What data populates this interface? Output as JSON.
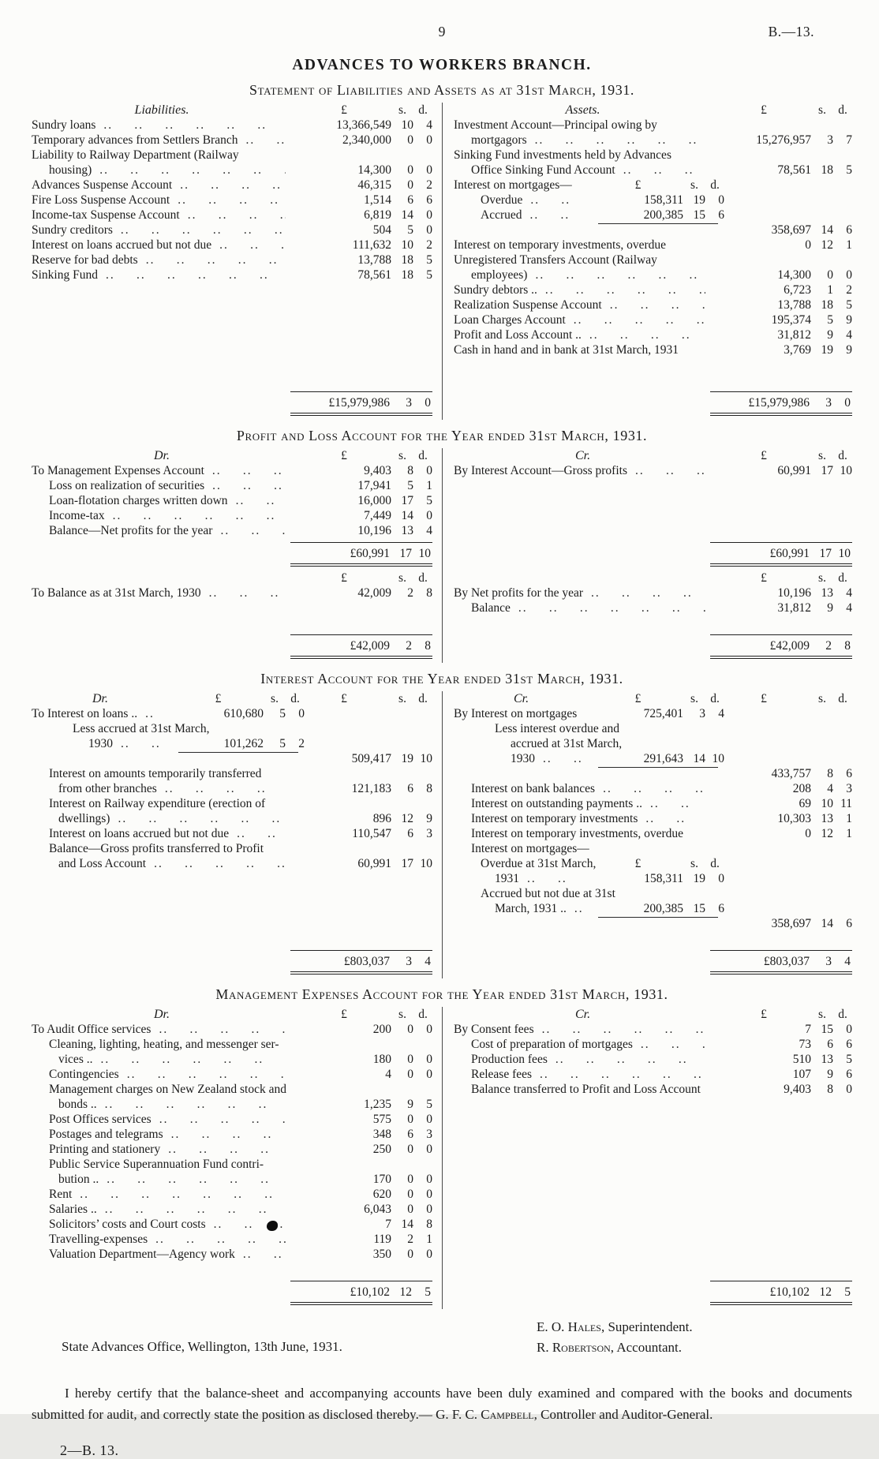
{
  "page": {
    "number": "9",
    "ref": "B.—13.",
    "footer": "2—B. 13."
  },
  "title": "ADVANCES TO WORKERS BRANCH.",
  "sections": [
    {
      "id": "balance-sheet",
      "heading": "Statement of Liabilities and Assets as at 31st March, 1931.",
      "left": {
        "lines": [
          {
            "hdr": "Liabilities.",
            "o": [
              "£",
              "s.",
              "d."
            ]
          },
          {
            "t": "Sundry loans",
            "dots": true,
            "o": [
              "13,366,549",
              "10",
              "4"
            ]
          },
          {
            "t": "Temporary advances from Settlers Branch",
            "dots": true,
            "o": [
              "2,340,000",
              "0",
              "0"
            ]
          },
          {
            "t": "Liability to Railway Department (Railway"
          },
          {
            "t": "housing)",
            "ind": 1,
            "dots": true,
            "o": [
              "14,300",
              "0",
              "0"
            ]
          },
          {
            "t": "Advances Suspense Account",
            "dots": true,
            "o": [
              "46,315",
              "0",
              "2"
            ]
          },
          {
            "t": "Fire Loss Suspense Account",
            "dots": true,
            "o": [
              "1,514",
              "6",
              "6"
            ]
          },
          {
            "t": "Income-tax Suspense Account",
            "dots": true,
            "o": [
              "6,819",
              "14",
              "0"
            ]
          },
          {
            "t": "Sundry creditors",
            "dots": true,
            "o": [
              "504",
              "5",
              "0"
            ]
          },
          {
            "t": "Interest on loans accrued but not due",
            "dots": true,
            "o": [
              "111,632",
              "10",
              "2"
            ]
          },
          {
            "t": "Reserve for bad debts",
            "dots": true,
            "o": [
              "13,788",
              "18",
              "5"
            ]
          },
          {
            "t": "Sinking Fund",
            "dots": true,
            "o": [
              "78,561",
              "18",
              "5"
            ]
          },
          {
            "sp": 7
          },
          {
            "total": [
              "£15,979,986",
              "3",
              "0"
            ]
          }
        ]
      },
      "right": {
        "lines": [
          {
            "hdr": "Assets.",
            "o": [
              "£",
              "s.",
              "d."
            ]
          },
          {
            "t": "Investment Account—Principal owing by"
          },
          {
            "t": "mortgagors",
            "ind": 1,
            "dots": true,
            "o": [
              "15,276,957",
              "3",
              "7"
            ]
          },
          {
            "t": "Sinking Fund investments held by Advances"
          },
          {
            "t": "Office Sinking Fund Account",
            "ind": 1,
            "dots": true,
            "o": [
              "78,561",
              "18",
              "5"
            ]
          },
          {
            "t": "Interest on mortgages—",
            "i": [
              "£",
              "s.",
              "d."
            ],
            "mh": true
          },
          {
            "t": "Overdue",
            "ind": 2,
            "dots": true,
            "i": [
              "158,311",
              "19",
              "0"
            ]
          },
          {
            "t": "Accrued",
            "ind": 2,
            "dots": true,
            "i": [
              "200,385",
              "15",
              "6"
            ]
          },
          {
            "rule": true,
            "o": [
              "358,697",
              "14",
              "6"
            ]
          },
          {
            "t": "Interest on temporary investments, overdue",
            "o": [
              "0",
              "12",
              "1"
            ]
          },
          {
            "t": "Unregistered Transfers Account (Railway"
          },
          {
            "t": "employees)",
            "ind": 1,
            "dots": true,
            "o": [
              "14,300",
              "0",
              "0"
            ]
          },
          {
            "t": "Sundry debtors ..",
            "dots": true,
            "o": [
              "6,723",
              "1",
              "2"
            ]
          },
          {
            "t": "Realization Suspense Account",
            "dots": true,
            "o": [
              "13,788",
              "18",
              "5"
            ]
          },
          {
            "t": "Loan Charges Account",
            "dots": true,
            "o": [
              "195,374",
              "5",
              "9"
            ]
          },
          {
            "t": "Profit and Loss Account ..",
            "dots": true,
            "o": [
              "31,812",
              "9",
              "4"
            ]
          },
          {
            "t": "Cash in hand and in bank at 31st March, 1931",
            "o": [
              "3,769",
              "19",
              "9"
            ]
          },
          {
            "sp": 2
          },
          {
            "total": [
              "£15,979,986",
              "3",
              "0"
            ]
          }
        ]
      }
    },
    {
      "id": "profit-and-loss",
      "heading": "Profit and Loss Account for the Year ended 31st March, 1931.",
      "left": {
        "lines": [
          {
            "hdr": "Dr.",
            "o": [
              "£",
              "s.",
              "d."
            ]
          },
          {
            "t": "To Management Expenses Account",
            "dots": true,
            "o": [
              "9,403",
              "8",
              "0"
            ]
          },
          {
            "t": "Loss on realization of securities",
            "ind": 1,
            "dots": true,
            "o": [
              "17,941",
              "5",
              "1"
            ]
          },
          {
            "t": "Loan-flotation charges written down",
            "ind": 1,
            "dots": true,
            "o": [
              "16,000",
              "17",
              "5"
            ]
          },
          {
            "t": "Income-tax",
            "ind": 1,
            "dots": true,
            "o": [
              "7,449",
              "14",
              "0"
            ]
          },
          {
            "t": "Balance—Net profits for the year",
            "ind": 1,
            "dots": true,
            "o": [
              "10,196",
              "13",
              "4"
            ]
          },
          {
            "total": [
              "£60,991",
              "17",
              "10"
            ]
          },
          {
            "mh2": true,
            "o": [
              "£",
              "s.",
              "d."
            ]
          },
          {
            "t": "To Balance as at 31st March, 1930",
            "dots": true,
            "o": [
              "42,009",
              "2",
              "8"
            ]
          },
          {
            "sp": 2
          },
          {
            "total": [
              "£42,009",
              "2",
              "8"
            ]
          }
        ]
      },
      "right": {
        "lines": [
          {
            "hdr": "Cr.",
            "o": [
              "£",
              "s.",
              "d."
            ]
          },
          {
            "t": "By Interest Account—Gross profits",
            "dots": true,
            "o": [
              "60,991",
              "17",
              "10"
            ]
          },
          {
            "sp": 4
          },
          {
            "total": [
              "£60,991",
              "17",
              "10"
            ]
          },
          {
            "mh2": true,
            "o": [
              "£",
              "s.",
              "d."
            ]
          },
          {
            "t": "By Net profits for the year",
            "dots": true,
            "o": [
              "10,196",
              "13",
              "4"
            ]
          },
          {
            "t": "Balance",
            "ind": 1,
            "dots": true,
            "o": [
              "31,812",
              "9",
              "4"
            ]
          },
          {
            "sp": 1
          },
          {
            "total": [
              "£42,009",
              "2",
              "8"
            ]
          }
        ]
      }
    },
    {
      "id": "interest-account",
      "heading": "Interest Account for the Year ended 31st March, 1931.",
      "left": {
        "lines": [
          {
            "hdr": "Dr.",
            "i": [
              "£",
              "s.",
              "d."
            ],
            "o": [
              "£",
              "s.",
              "d."
            ]
          },
          {
            "t": "To Interest on loans ..",
            "dots": true,
            "i": [
              "610,680",
              "5",
              "0"
            ]
          },
          {
            "t": "Less accrued at 31st March,",
            "ind": 3
          },
          {
            "t": "1930",
            "ind": 4,
            "dots": true,
            "i": [
              "101,262",
              "5",
              "2"
            ]
          },
          {
            "rule": true,
            "o": [
              "509,417",
              "19",
              "10"
            ]
          },
          {
            "t": "Interest on amounts temporarily transferred",
            "ind": 1
          },
          {
            "t": "from other branches",
            "ind": 2,
            "dots": true,
            "o": [
              "121,183",
              "6",
              "8"
            ]
          },
          {
            "t": "Interest on Railway expenditure (erection of",
            "ind": 1
          },
          {
            "t": "dwellings)",
            "ind": 2,
            "dots": true,
            "o": [
              "896",
              "12",
              "9"
            ]
          },
          {
            "t": "Interest on loans accrued but not due",
            "ind": 1,
            "dots": true,
            "o": [
              "110,547",
              "6",
              "3"
            ]
          },
          {
            "t": "Balance—Gross profits transferred to Profit",
            "ind": 1
          },
          {
            "t": "and Loss Account",
            "ind": 2,
            "dots": true,
            "o": [
              "60,991",
              "17",
              "10"
            ]
          },
          {
            "sp": 5
          },
          {
            "total": [
              "£803,037",
              "3",
              "4"
            ]
          }
        ]
      },
      "right": {
        "lines": [
          {
            "hdr": "Cr.",
            "i": [
              "£",
              "s.",
              "d."
            ],
            "o": [
              "£",
              "s.",
              "d."
            ]
          },
          {
            "t": "By Interest on mortgages",
            "dots": true,
            "i": [
              "725,401",
              "3",
              "4"
            ]
          },
          {
            "t": "Less interest overdue and",
            "ind": 3
          },
          {
            "t": "accrued at 31st March,",
            "ind": 4
          },
          {
            "t": "1930",
            "ind": 4,
            "dots": true,
            "i": [
              "291,643",
              "14",
              "10"
            ]
          },
          {
            "rule": true,
            "o": [
              "433,757",
              "8",
              "6"
            ]
          },
          {
            "t": "Interest on bank balances",
            "ind": 1,
            "dots": true,
            "o": [
              "208",
              "4",
              "3"
            ]
          },
          {
            "t": "Interest on outstanding payments ..",
            "ind": 1,
            "dots": true,
            "o": [
              "69",
              "10",
              "11"
            ]
          },
          {
            "t": "Interest on temporary investments",
            "ind": 1,
            "dots": true,
            "o": [
              "10,303",
              "13",
              "1"
            ]
          },
          {
            "t": "Interest on temporary investments, overdue",
            "ind": 1,
            "o": [
              "0",
              "12",
              "1"
            ]
          },
          {
            "t": "Interest on mortgages—",
            "ind": 1
          },
          {
            "t": "Overdue at 31st March,",
            "ind": 2,
            "i": [
              "£",
              "s.",
              "d."
            ],
            "mh": true
          },
          {
            "t": "1931",
            "ind": 3,
            "dots": true,
            "i": [
              "158,311",
              "19",
              "0"
            ]
          },
          {
            "t": "Accrued but not due at 31st",
            "ind": 2
          },
          {
            "t": "March, 1931 ..",
            "ind": 3,
            "dots": true,
            "i": [
              "200,385",
              "15",
              "6"
            ]
          },
          {
            "rule": true,
            "o": [
              "358,697",
              "14",
              "6"
            ]
          },
          {
            "sp": 1
          },
          {
            "total": [
              "£803,037",
              "3",
              "4"
            ]
          }
        ]
      }
    },
    {
      "id": "management-expenses",
      "heading": "Management Expenses Account for the Year ended 31st March, 1931.",
      "left": {
        "lines": [
          {
            "hdr": "Dr.",
            "o": [
              "£",
              "s.",
              "d."
            ]
          },
          {
            "t": "To Audit Office services",
            "dots": true,
            "o": [
              "200",
              "0",
              "0"
            ]
          },
          {
            "t": "Cleaning, lighting, heating, and messenger ser-",
            "ind": 1
          },
          {
            "t": "vices ..",
            "ind": 2,
            "dots": true,
            "o": [
              "180",
              "0",
              "0"
            ]
          },
          {
            "t": "Contingencies",
            "ind": 1,
            "dots": true,
            "o": [
              "4",
              "0",
              "0"
            ]
          },
          {
            "t": "Management charges on New Zealand stock and",
            "ind": 1
          },
          {
            "t": "bonds ..",
            "ind": 2,
            "dots": true,
            "o": [
              "1,235",
              "9",
              "5"
            ]
          },
          {
            "t": "Post Offices services",
            "ind": 1,
            "dots": true,
            "o": [
              "575",
              "0",
              "0"
            ]
          },
          {
            "t": "Postages and telegrams",
            "ind": 1,
            "dots": true,
            "o": [
              "348",
              "6",
              "3"
            ]
          },
          {
            "t": "Printing and stationery",
            "ind": 1,
            "dots": true,
            "o": [
              "250",
              "0",
              "0"
            ]
          },
          {
            "t": "Public Service Superannuation Fund contri-",
            "ind": 1
          },
          {
            "t": "bution ..",
            "ind": 2,
            "dots": true,
            "o": [
              "170",
              "0",
              "0"
            ]
          },
          {
            "t": "Rent",
            "ind": 1,
            "dots": true,
            "o": [
              "620",
              "0",
              "0"
            ]
          },
          {
            "t": "Salaries ..",
            "ind": 1,
            "dots": true,
            "o": [
              "6,043",
              "0",
              "0"
            ]
          },
          {
            "t": "Solicitors’ costs and Court costs",
            "ind": 1,
            "dots": true,
            "blot": true,
            "o": [
              "7",
              "14",
              "8"
            ]
          },
          {
            "t": "Travelling-expenses",
            "ind": 1,
            "dots": true,
            "o": [
              "119",
              "2",
              "1"
            ]
          },
          {
            "t": "Valuation Department—Agency work",
            "ind": 1,
            "dots": true,
            "o": [
              "350",
              "0",
              "0"
            ]
          },
          {
            "sp": 1
          },
          {
            "total": [
              "£10,102",
              "12",
              "5"
            ]
          }
        ]
      },
      "right": {
        "lines": [
          {
            "hdr": "Cr.",
            "o": [
              "£",
              "s.",
              "d."
            ]
          },
          {
            "t": "By Consent fees",
            "dots": true,
            "o": [
              "7",
              "15",
              "0"
            ]
          },
          {
            "t": "Cost of preparation of mortgages",
            "ind": 1,
            "dots": true,
            "o": [
              "73",
              "6",
              "6"
            ]
          },
          {
            "t": "Production fees",
            "ind": 1,
            "dots": true,
            "o": [
              "510",
              "13",
              "5"
            ]
          },
          {
            "t": "Release fees",
            "ind": 1,
            "dots": true,
            "o": [
              "107",
              "9",
              "6"
            ]
          },
          {
            "t": "Balance transferred to Profit and Loss Account",
            "ind": 1,
            "o": [
              "9,403",
              "8",
              "0"
            ]
          },
          {
            "sp": 12
          },
          {
            "total": [
              "£10,102",
              "12",
              "5"
            ]
          }
        ]
      }
    }
  ],
  "signoff": {
    "office_line": "State Advances Office, Wellington, 13th June, 1931.",
    "sig1_name": "E. O. Hales",
    "sig1_role": ", Superintendent.",
    "sig2_name": "R. Robertson",
    "sig2_role": ", Accountant."
  },
  "certification": {
    "body": "I hereby certify that the balance-sheet and accompanying accounts have been duly examined and compared with the books and documents submitted for audit, and correctly state the position as disclosed thereby.— ",
    "signatory": "G. F. C. Campbell",
    "signatory_role": ", Controller and Auditor-General."
  }
}
